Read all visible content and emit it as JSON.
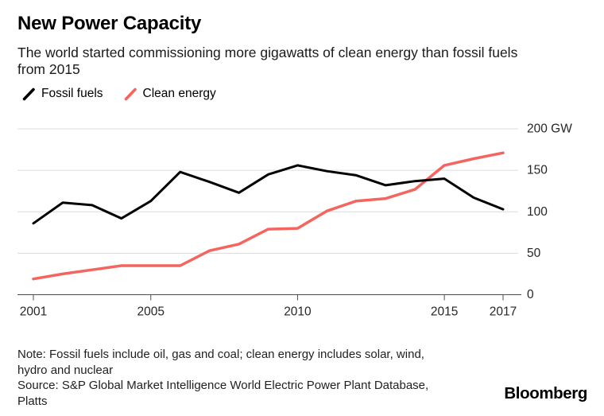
{
  "header": {
    "title": "New Power Capacity",
    "subtitle": "The world started commissioning more gigawatts of clean energy than fossil fuels\nfrom 2015"
  },
  "chart_data": {
    "type": "line",
    "x": [
      2001,
      2002,
      2003,
      2004,
      2005,
      2006,
      2007,
      2008,
      2009,
      2010,
      2011,
      2012,
      2013,
      2014,
      2015,
      2016,
      2017
    ],
    "series": [
      {
        "name": "Fossil fuels",
        "color": "#000000",
        "values": [
          86,
          111,
          108,
          92,
          113,
          148,
          136,
          123,
          145,
          156,
          149,
          144,
          132,
          137,
          140,
          117,
          103
        ]
      },
      {
        "name": "Clean energy",
        "color": "#F4655F",
        "values": [
          19,
          25,
          30,
          35,
          35,
          35,
          53,
          61,
          79,
          80,
          101,
          113,
          116,
          127,
          156,
          164,
          171
        ]
      }
    ],
    "ylim": [
      0,
      200
    ],
    "yticks": [
      0,
      50,
      100,
      150,
      200
    ],
    "ytick_labels": [
      "0",
      "50",
      "100",
      "150",
      "200 GW"
    ],
    "xticks": [
      2001,
      2005,
      2010,
      2015,
      2017
    ],
    "xtick_labels": [
      "2001",
      "2005",
      "2010",
      "2015",
      "2017"
    ],
    "unit": "GW",
    "grid": true,
    "legend_position": "top-left"
  },
  "footer": {
    "note": "Note: Fossil fuels include oil, gas and coal; clean energy includes solar, wind,\nhydro and nuclear",
    "source": "Source: S&P Global Market Intelligence World Electric Power Plant Database,\nPlatts",
    "logo": "Bloomberg"
  },
  "colors": {
    "fossil": "#000000",
    "clean": "#F4655F",
    "gridline": "#DCDCDC",
    "axis": "#4D4D4D",
    "tick_label": "#262626",
    "background": "#FFFFFF"
  }
}
